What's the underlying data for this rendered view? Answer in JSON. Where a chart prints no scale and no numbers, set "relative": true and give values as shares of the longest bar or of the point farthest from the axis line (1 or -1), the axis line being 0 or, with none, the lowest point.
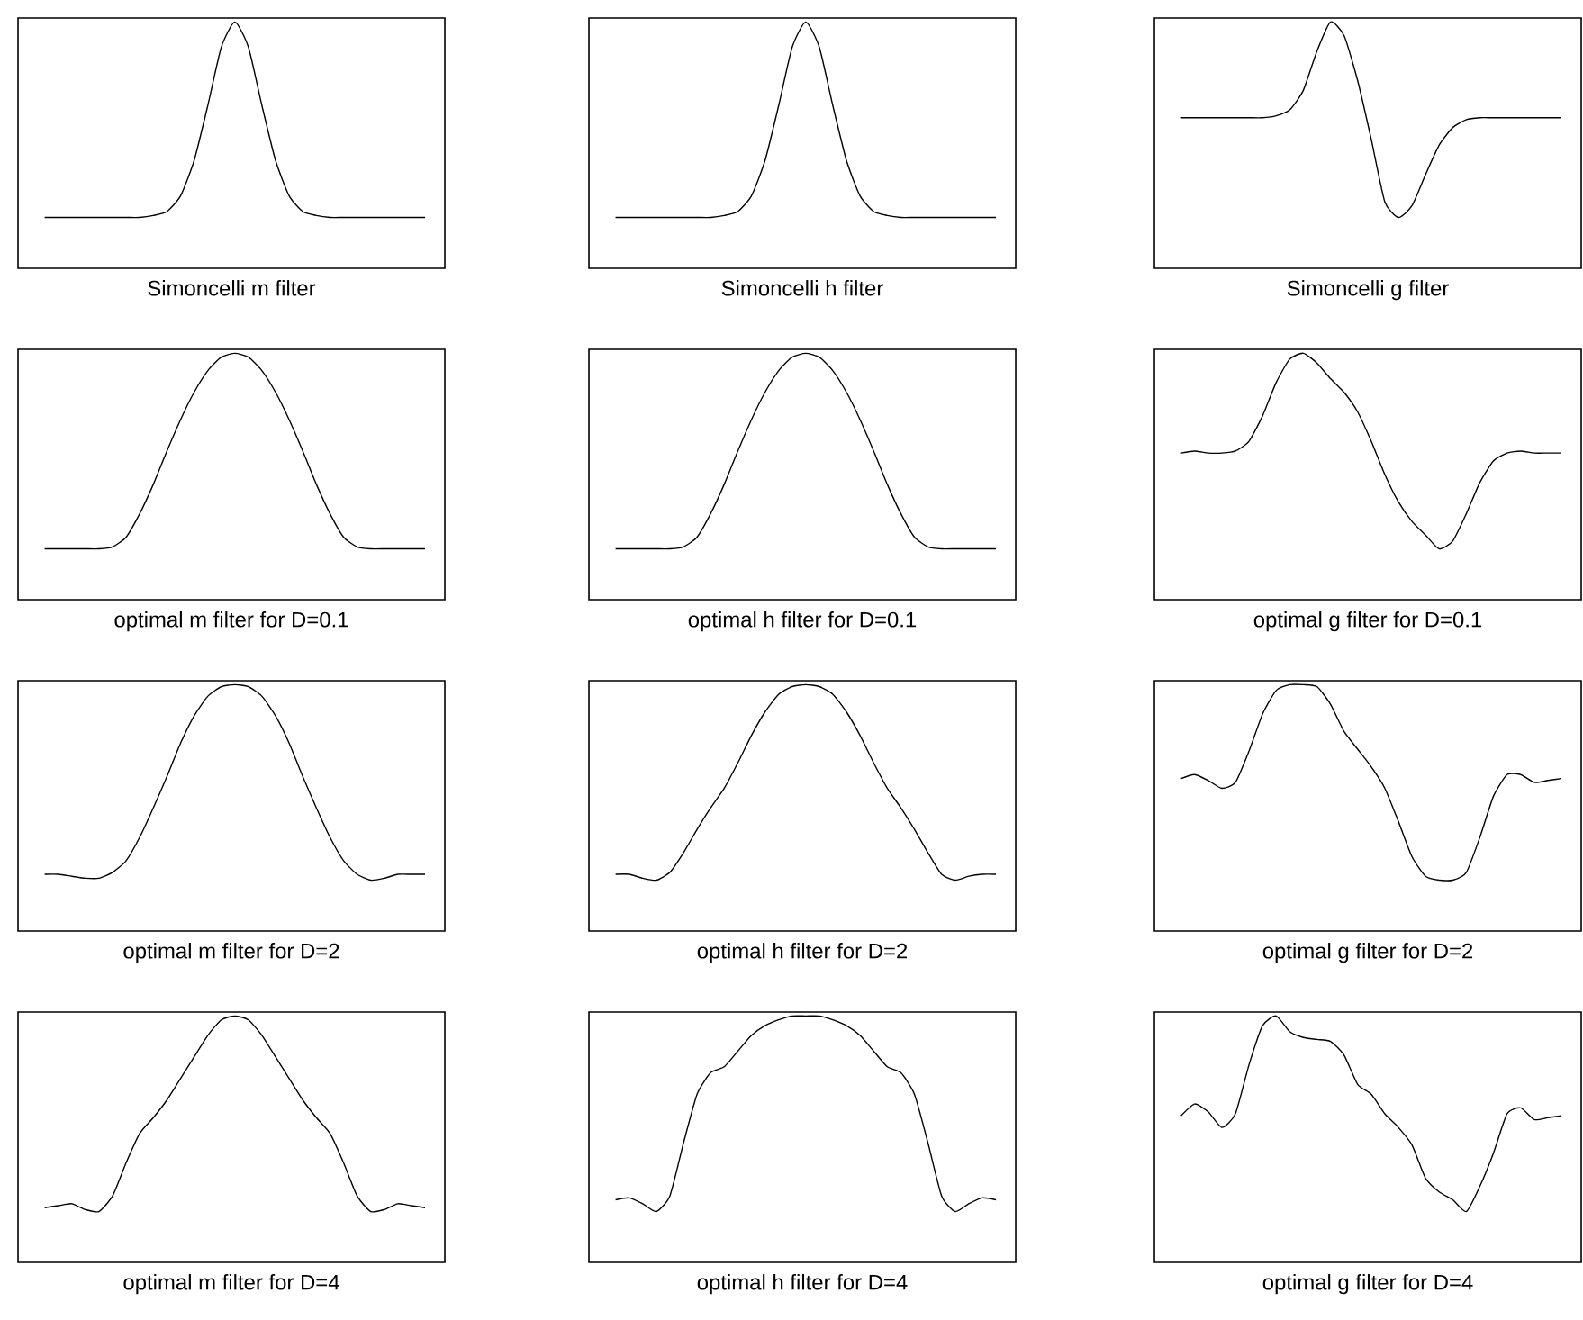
{
  "chart_data": [
    {
      "type": "line",
      "relative": true,
      "color": "#000000",
      "xlabel": "Simoncelli m filter",
      "categories": [
        null,
        null,
        null,
        null,
        null,
        null,
        null,
        null,
        null,
        null,
        null,
        null,
        null,
        null,
        null,
        null,
        null,
        null,
        null,
        null,
        null,
        null,
        null,
        null,
        null,
        null,
        null,
        null,
        null
      ],
      "values": [
        0,
        0,
        0,
        0,
        0,
        0,
        0,
        0,
        0.01,
        0.03,
        0.11,
        0.29,
        0.57,
        0.87,
        1,
        0.87,
        0.57,
        0.29,
        0.11,
        0.03,
        0.01,
        0,
        0,
        0,
        0,
        0,
        0,
        0,
        0
      ]
    },
    {
      "type": "line",
      "relative": true,
      "color": "#000000",
      "xlabel": "Simoncelli h filter",
      "categories": [
        null,
        null,
        null,
        null,
        null,
        null,
        null,
        null,
        null,
        null,
        null,
        null,
        null,
        null,
        null,
        null,
        null,
        null,
        null,
        null,
        null,
        null,
        null,
        null,
        null,
        null,
        null,
        null,
        null
      ],
      "values": [
        0,
        0,
        0,
        0,
        0,
        0,
        0,
        0,
        0.01,
        0.03,
        0.11,
        0.29,
        0.57,
        0.87,
        1,
        0.87,
        0.57,
        0.29,
        0.11,
        0.03,
        0.01,
        0,
        0,
        0,
        0,
        0,
        0,
        0,
        0
      ]
    },
    {
      "type": "line",
      "relative": true,
      "color": "#000000",
      "xlabel": "Simoncelli g filter",
      "categories": [
        null,
        null,
        null,
        null,
        null,
        null,
        null,
        null,
        null,
        null,
        null,
        null,
        null,
        null,
        null,
        null,
        null,
        null,
        null,
        null,
        null,
        null,
        null,
        null,
        null,
        null,
        null,
        null,
        null
      ],
      "values": [
        0.51,
        0.51,
        0.51,
        0.51,
        0.51,
        0.51,
        0.51,
        0.52,
        0.55,
        0.65,
        0.85,
        1.0,
        0.93,
        0.7,
        0.4,
        0.08,
        0.0,
        0.06,
        0.22,
        0.37,
        0.46,
        0.5,
        0.51,
        0.51,
        0.51,
        0.51,
        0.51,
        0.51,
        0.51
      ]
    },
    {
      "type": "line",
      "relative": true,
      "color": "#000000",
      "xlabel": "optimal m filter for D=0.1",
      "categories": [
        null,
        null,
        null,
        null,
        null,
        null,
        null,
        null,
        null,
        null,
        null,
        null,
        null,
        null,
        null,
        null,
        null,
        null,
        null,
        null,
        null,
        null,
        null,
        null,
        null,
        null,
        null,
        null,
        null
      ],
      "values": [
        0,
        0,
        0,
        0,
        0,
        0.01,
        0.06,
        0.18,
        0.33,
        0.5,
        0.66,
        0.8,
        0.91,
        0.98,
        1,
        0.98,
        0.91,
        0.8,
        0.66,
        0.5,
        0.33,
        0.18,
        0.06,
        0.01,
        0,
        0,
        0,
        0,
        0
      ]
    },
    {
      "type": "line",
      "relative": true,
      "color": "#000000",
      "xlabel": "optimal h filter for D=0.1",
      "categories": [
        null,
        null,
        null,
        null,
        null,
        null,
        null,
        null,
        null,
        null,
        null,
        null,
        null,
        null,
        null,
        null,
        null,
        null,
        null,
        null,
        null,
        null,
        null,
        null,
        null,
        null,
        null,
        null,
        null
      ],
      "values": [
        0,
        0,
        0,
        0,
        0,
        0.01,
        0.06,
        0.18,
        0.33,
        0.5,
        0.66,
        0.8,
        0.91,
        0.98,
        1,
        0.98,
        0.91,
        0.8,
        0.66,
        0.5,
        0.33,
        0.18,
        0.06,
        0.01,
        0,
        0,
        0,
        0,
        0
      ]
    },
    {
      "type": "line",
      "relative": true,
      "color": "#000000",
      "xlabel": "optimal g filter for D=0.1",
      "categories": [
        null,
        null,
        null,
        null,
        null,
        null,
        null,
        null,
        null,
        null,
        null,
        null,
        null,
        null,
        null,
        null,
        null,
        null,
        null,
        null,
        null,
        null,
        null,
        null,
        null,
        null,
        null,
        null,
        null
      ],
      "values": [
        0.49,
        0.5,
        0.49,
        0.49,
        0.5,
        0.55,
        0.68,
        0.85,
        0.97,
        1.0,
        0.95,
        0.87,
        0.8,
        0.7,
        0.55,
        0.38,
        0.24,
        0.14,
        0.07,
        0.0,
        0.04,
        0.18,
        0.34,
        0.45,
        0.49,
        0.5,
        0.49,
        0.49,
        0.49
      ]
    },
    {
      "type": "line",
      "relative": true,
      "color": "#000000",
      "xlabel": "optimal m filter for D=2",
      "categories": [
        null,
        null,
        null,
        null,
        null,
        null,
        null,
        null,
        null,
        null,
        null,
        null,
        null,
        null,
        null,
        null,
        null,
        null,
        null,
        null,
        null,
        null,
        null,
        null,
        null,
        null,
        null,
        null,
        null
      ],
      "values": [
        0.03,
        0.03,
        0.02,
        0.01,
        0.01,
        0.04,
        0.1,
        0.22,
        0.37,
        0.53,
        0.7,
        0.84,
        0.94,
        0.99,
        1,
        0.99,
        0.94,
        0.84,
        0.7,
        0.53,
        0.37,
        0.22,
        0.1,
        0.03,
        0.0,
        0.01,
        0.03,
        0.03,
        0.03
      ]
    },
    {
      "type": "line",
      "relative": true,
      "color": "#000000",
      "xlabel": "optimal h filter for D=2",
      "categories": [
        null,
        null,
        null,
        null,
        null,
        null,
        null,
        null,
        null,
        null,
        null,
        null,
        null,
        null,
        null,
        null,
        null,
        null,
        null,
        null,
        null,
        null,
        null,
        null,
        null,
        null,
        null,
        null,
        null
      ],
      "values": [
        0.03,
        0.03,
        0.01,
        0.0,
        0.04,
        0.14,
        0.26,
        0.37,
        0.47,
        0.6,
        0.74,
        0.86,
        0.95,
        0.99,
        1,
        0.99,
        0.95,
        0.86,
        0.74,
        0.6,
        0.47,
        0.37,
        0.26,
        0.14,
        0.03,
        0.0,
        0.02,
        0.03,
        0.03
      ]
    },
    {
      "type": "line",
      "relative": true,
      "color": "#000000",
      "xlabel": "optimal g filter for D=2",
      "categories": [
        null,
        null,
        null,
        null,
        null,
        null,
        null,
        null,
        null,
        null,
        null,
        null,
        null,
        null,
        null,
        null,
        null,
        null,
        null,
        null,
        null,
        null,
        null,
        null,
        null,
        null,
        null,
        null,
        null
      ],
      "values": [
        0.52,
        0.54,
        0.51,
        0.47,
        0.5,
        0.66,
        0.85,
        0.97,
        1.0,
        1.0,
        0.99,
        0.9,
        0.76,
        0.67,
        0.58,
        0.47,
        0.3,
        0.12,
        0.02,
        0.0,
        0.0,
        0.04,
        0.22,
        0.43,
        0.54,
        0.54,
        0.5,
        0.51,
        0.52
      ]
    },
    {
      "type": "line",
      "relative": true,
      "color": "#000000",
      "xlabel": "optimal m filter for D=4",
      "categories": [
        null,
        null,
        null,
        null,
        null,
        null,
        null,
        null,
        null,
        null,
        null,
        null,
        null,
        null,
        null,
        null,
        null,
        null,
        null,
        null,
        null,
        null,
        null,
        null,
        null,
        null,
        null,
        null,
        null
      ],
      "values": [
        0.02,
        0.03,
        0.04,
        0.01,
        0.0,
        0.08,
        0.25,
        0.4,
        0.48,
        0.57,
        0.68,
        0.79,
        0.9,
        0.98,
        1,
        0.98,
        0.9,
        0.79,
        0.68,
        0.57,
        0.48,
        0.4,
        0.25,
        0.08,
        0.0,
        0.01,
        0.04,
        0.03,
        0.02
      ]
    },
    {
      "type": "line",
      "relative": true,
      "color": "#000000",
      "xlabel": "optimal h filter for D=4",
      "categories": [
        null,
        null,
        null,
        null,
        null,
        null,
        null,
        null,
        null,
        null,
        null,
        null,
        null,
        null,
        null,
        null,
        null,
        null,
        null,
        null,
        null,
        null,
        null,
        null,
        null,
        null,
        null,
        null,
        null
      ],
      "values": [
        0.06,
        0.07,
        0.04,
        0.0,
        0.08,
        0.35,
        0.6,
        0.71,
        0.74,
        0.82,
        0.9,
        0.95,
        0.98,
        1,
        1,
        1,
        0.98,
        0.95,
        0.9,
        0.82,
        0.74,
        0.71,
        0.6,
        0.35,
        0.08,
        0.0,
        0.04,
        0.07,
        0.06
      ]
    },
    {
      "type": "line",
      "relative": true,
      "color": "#000000",
      "xlabel": "optimal g filter for D=4",
      "categories": [
        null,
        null,
        null,
        null,
        null,
        null,
        null,
        null,
        null,
        null,
        null,
        null,
        null,
        null,
        null,
        null,
        null,
        null,
        null,
        null,
        null,
        null,
        null,
        null,
        null,
        null,
        null,
        null,
        null
      ],
      "values": [
        0.49,
        0.55,
        0.51,
        0.43,
        0.5,
        0.75,
        0.95,
        1.0,
        0.92,
        0.89,
        0.88,
        0.87,
        0.8,
        0.65,
        0.6,
        0.5,
        0.43,
        0.34,
        0.17,
        0.1,
        0.06,
        0.0,
        0.13,
        0.3,
        0.5,
        0.53,
        0.47,
        0.48,
        0.49
      ]
    }
  ]
}
